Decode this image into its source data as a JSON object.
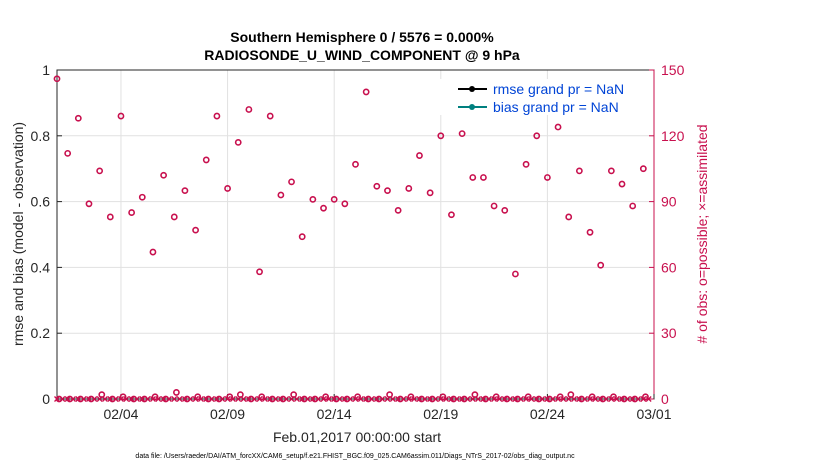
{
  "chart_data": {
    "type": "scatter",
    "title": [
      "Southern Hemisphere 0 / 5576 = 0.000%",
      "RADIOSONDE_U_WIND_COMPONENT @ 9 hPa"
    ],
    "xlabel": "Feb.01,2017 00:00:00 start",
    "ylabel_left": "rmse and bias (model - observation)",
    "ylabel_right": "# of obs: o=possible; ×=assimilated",
    "footer": "data file: /Users/raeder/DAI/ATM_forcXX/CAM6_setup/f.e21.FHIST_BGC.f09_025.CAM6assim.011/Diags_NTrS_2017-02/obs_diag_output.nc",
    "xlim": [
      0,
      28
    ],
    "x_ticks": [
      {
        "x": 3,
        "label": "02/04"
      },
      {
        "x": 8,
        "label": "02/09"
      },
      {
        "x": 13,
        "label": "02/14"
      },
      {
        "x": 18,
        "label": "02/19"
      },
      {
        "x": 23,
        "label": "02/24"
      },
      {
        "x": 28,
        "label": "03/01"
      }
    ],
    "ylim_left": [
      0,
      1
    ],
    "y_ticks_left": [
      "0",
      "0.2",
      "0.4",
      "0.6",
      "0.8",
      "1"
    ],
    "ylim_right": [
      0,
      150
    ],
    "y_ticks_right": [
      "0",
      "30",
      "60",
      "90",
      "120",
      "150"
    ],
    "grid": true,
    "legend_position": "top-right",
    "colors": {
      "rmse": "#000000",
      "bias": "#00807f",
      "obs": "#c8104e",
      "legend_text": "#0044d6"
    },
    "series": [
      {
        "name": "rmse grand pr = NaN",
        "values": []
      },
      {
        "name": "bias grand pr = NaN",
        "values": []
      }
    ],
    "obs_possible": {
      "x": [
        0.0,
        0.5,
        1.0,
        1.5,
        2.0,
        2.5,
        3.0,
        3.5,
        4.0,
        4.5,
        5.0,
        5.5,
        6.0,
        6.5,
        7.0,
        7.5,
        8.0,
        8.5,
        9.0,
        9.5,
        10.0,
        10.5,
        11.0,
        11.5,
        12.0,
        12.5,
        13.0,
        13.5,
        14.0,
        14.5,
        15.0,
        15.5,
        16.0,
        16.5,
        17.0,
        17.5,
        18.0,
        18.5,
        19.0,
        19.5,
        20.0,
        20.5,
        21.0,
        21.5,
        22.0,
        22.5,
        23.0,
        23.5,
        24.0,
        24.5,
        25.0,
        25.5,
        26.0,
        26.5,
        27.0,
        27.5
      ],
      "y": [
        146,
        112,
        128,
        89,
        104,
        83,
        129,
        85,
        92,
        67,
        102,
        83,
        95,
        77,
        109,
        129,
        96,
        117,
        132,
        58,
        129,
        93,
        99,
        74,
        91,
        87,
        91,
        89,
        107,
        140,
        97,
        95,
        86,
        96,
        111,
        94,
        120,
        84,
        121,
        101,
        101,
        88,
        86,
        57,
        107,
        120,
        101,
        124,
        83,
        104,
        76,
        61,
        104,
        98,
        88,
        105
      ]
    },
    "obs_assimilated": {
      "x": [
        0.0,
        0.25,
        0.5,
        0.75,
        1.0,
        1.25,
        1.5,
        1.75,
        2.0,
        2.25,
        2.5,
        2.75,
        3.0,
        3.25,
        3.5,
        3.75,
        4.0,
        4.25,
        4.5,
        4.75,
        5.0,
        5.25,
        5.5,
        5.75,
        6.0,
        6.25,
        6.5,
        6.75,
        7.0,
        7.25,
        7.5,
        7.75,
        8.0,
        8.25,
        8.5,
        8.75,
        9.0,
        9.25,
        9.5,
        9.75,
        10.0,
        10.25,
        10.5,
        10.75,
        11.0,
        11.25,
        11.5,
        11.75,
        12.0,
        12.25,
        12.5,
        12.75,
        13.0,
        13.25,
        13.5,
        13.75,
        14.0,
        14.25,
        14.5,
        14.75,
        15.0,
        15.25,
        15.5,
        15.75,
        16.0,
        16.25,
        16.5,
        16.75,
        17.0,
        17.25,
        17.5,
        17.75,
        18.0,
        18.25,
        18.5,
        18.75,
        19.0,
        19.25,
        19.5,
        19.75,
        20.0,
        20.25,
        20.5,
        20.75,
        21.0,
        21.25,
        21.5,
        21.75,
        22.0,
        22.25,
        22.5,
        22.75,
        23.0,
        23.25,
        23.5,
        23.75,
        24.0,
        24.25,
        24.5,
        24.75,
        25.0,
        25.25,
        25.5,
        25.75,
        26.0,
        26.25,
        26.5,
        26.75,
        27.0,
        27.25,
        27.5,
        27.75
      ],
      "y": [
        0,
        0,
        0,
        0,
        0,
        0,
        0,
        0,
        0,
        0,
        0,
        0,
        0,
        0,
        0,
        0,
        0,
        0,
        0,
        0,
        0,
        0,
        0,
        0,
        0,
        0,
        0,
        0,
        0,
        0,
        0,
        0,
        0,
        0,
        0,
        0,
        0,
        0,
        0,
        0,
        0,
        0,
        0,
        0,
        0,
        0,
        0,
        0,
        0,
        0,
        0,
        0,
        0,
        0,
        0,
        0,
        0,
        0,
        0,
        0,
        0,
        0,
        0,
        0,
        0,
        0,
        0,
        0,
        0,
        0,
        0,
        0,
        0,
        0,
        0,
        0,
        0,
        0,
        0,
        0,
        0,
        0,
        0,
        0,
        0,
        0,
        0,
        0,
        0,
        0,
        0,
        0,
        0,
        0,
        0,
        0,
        0,
        0,
        0,
        0,
        0,
        0,
        0,
        0,
        0,
        0,
        0,
        0,
        0,
        0,
        0,
        0
      ]
    },
    "obs_possible_near_zero": {
      "x": [
        0.1,
        0.6,
        1.1,
        1.6,
        2.1,
        2.6,
        3.1,
        3.6,
        4.1,
        4.6,
        5.1,
        5.6,
        6.1,
        6.6,
        7.1,
        7.6,
        8.1,
        8.6,
        9.1,
        9.6,
        10.1,
        10.6,
        11.1,
        11.6,
        12.1,
        12.6,
        13.1,
        13.6,
        14.1,
        14.6,
        15.1,
        15.6,
        16.1,
        16.6,
        17.1,
        17.6,
        18.1,
        18.6,
        19.1,
        19.6,
        20.1,
        20.6,
        21.1,
        21.6,
        22.1,
        22.6,
        23.1,
        23.6,
        24.1,
        24.6,
        25.1,
        25.6,
        26.1,
        26.6,
        27.1,
        27.6
      ],
      "y": [
        0,
        0,
        0,
        0,
        2,
        0,
        1,
        0,
        0,
        1,
        0,
        3,
        0,
        1,
        0,
        0,
        1,
        2,
        0,
        1,
        0,
        0,
        2,
        0,
        0,
        1,
        0,
        0,
        1,
        0,
        0,
        2,
        0,
        1,
        0,
        0,
        1,
        0,
        0,
        2,
        0,
        1,
        0,
        0,
        1,
        0,
        0,
        1,
        2,
        0,
        1,
        0,
        1,
        0,
        0,
        1
      ]
    }
  }
}
